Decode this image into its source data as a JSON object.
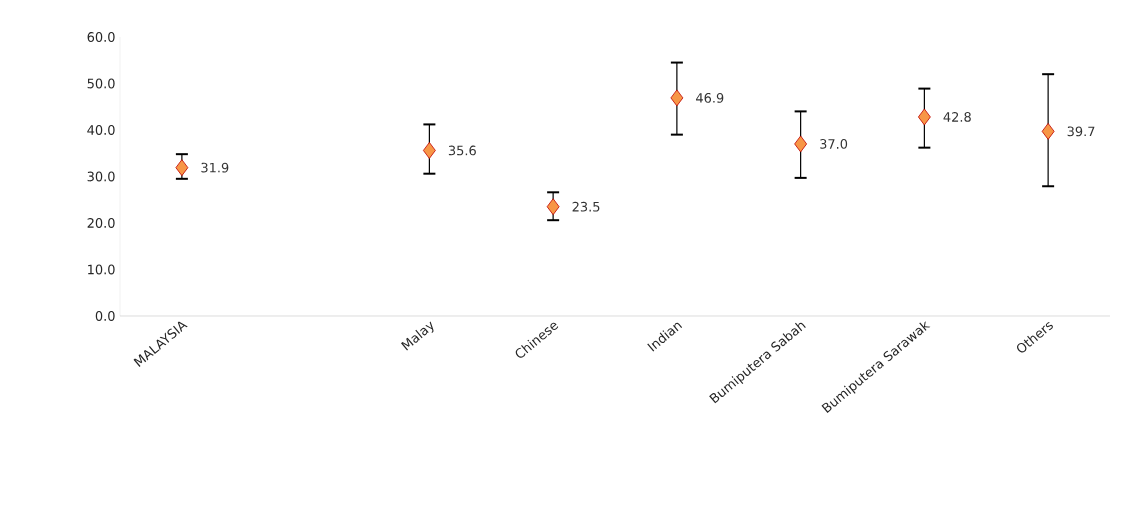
{
  "chart_data": {
    "type": "scatter",
    "categories": [
      "MALAYSIA",
      null,
      "Malay",
      "Chinese",
      "Indian",
      "Bumiputera Sabah",
      "Bumiputera Sarawak",
      "Others"
    ],
    "values": [
      31.9,
      null,
      35.6,
      23.5,
      46.9,
      37.0,
      42.8,
      39.7
    ],
    "errors": [
      [
        29.5,
        34.8
      ],
      null,
      [
        30.6,
        41.2
      ],
      [
        20.6,
        26.6
      ],
      [
        39.0,
        54.5
      ],
      [
        29.7,
        44.0
      ],
      [
        36.2,
        48.9
      ],
      [
        27.9,
        52.0
      ]
    ],
    "color": "#f79646",
    "marker": "diamond",
    "value_labels": [
      "31.9",
      null,
      "35.6",
      "23.5",
      "46.9",
      "37.0",
      "42.8",
      "39.7"
    ],
    "ylim": [
      0,
      60
    ],
    "yticks": [
      {
        "value": 0,
        "label": "0.0"
      },
      {
        "value": 10,
        "label": "10.0"
      },
      {
        "value": 20,
        "label": "20.0"
      },
      {
        "value": 30,
        "label": "30.0"
      },
      {
        "value": 40,
        "label": "40.0"
      },
      {
        "value": 50,
        "label": "50.0"
      },
      {
        "value": 60,
        "label": "60.0"
      }
    ],
    "grid": false
  }
}
